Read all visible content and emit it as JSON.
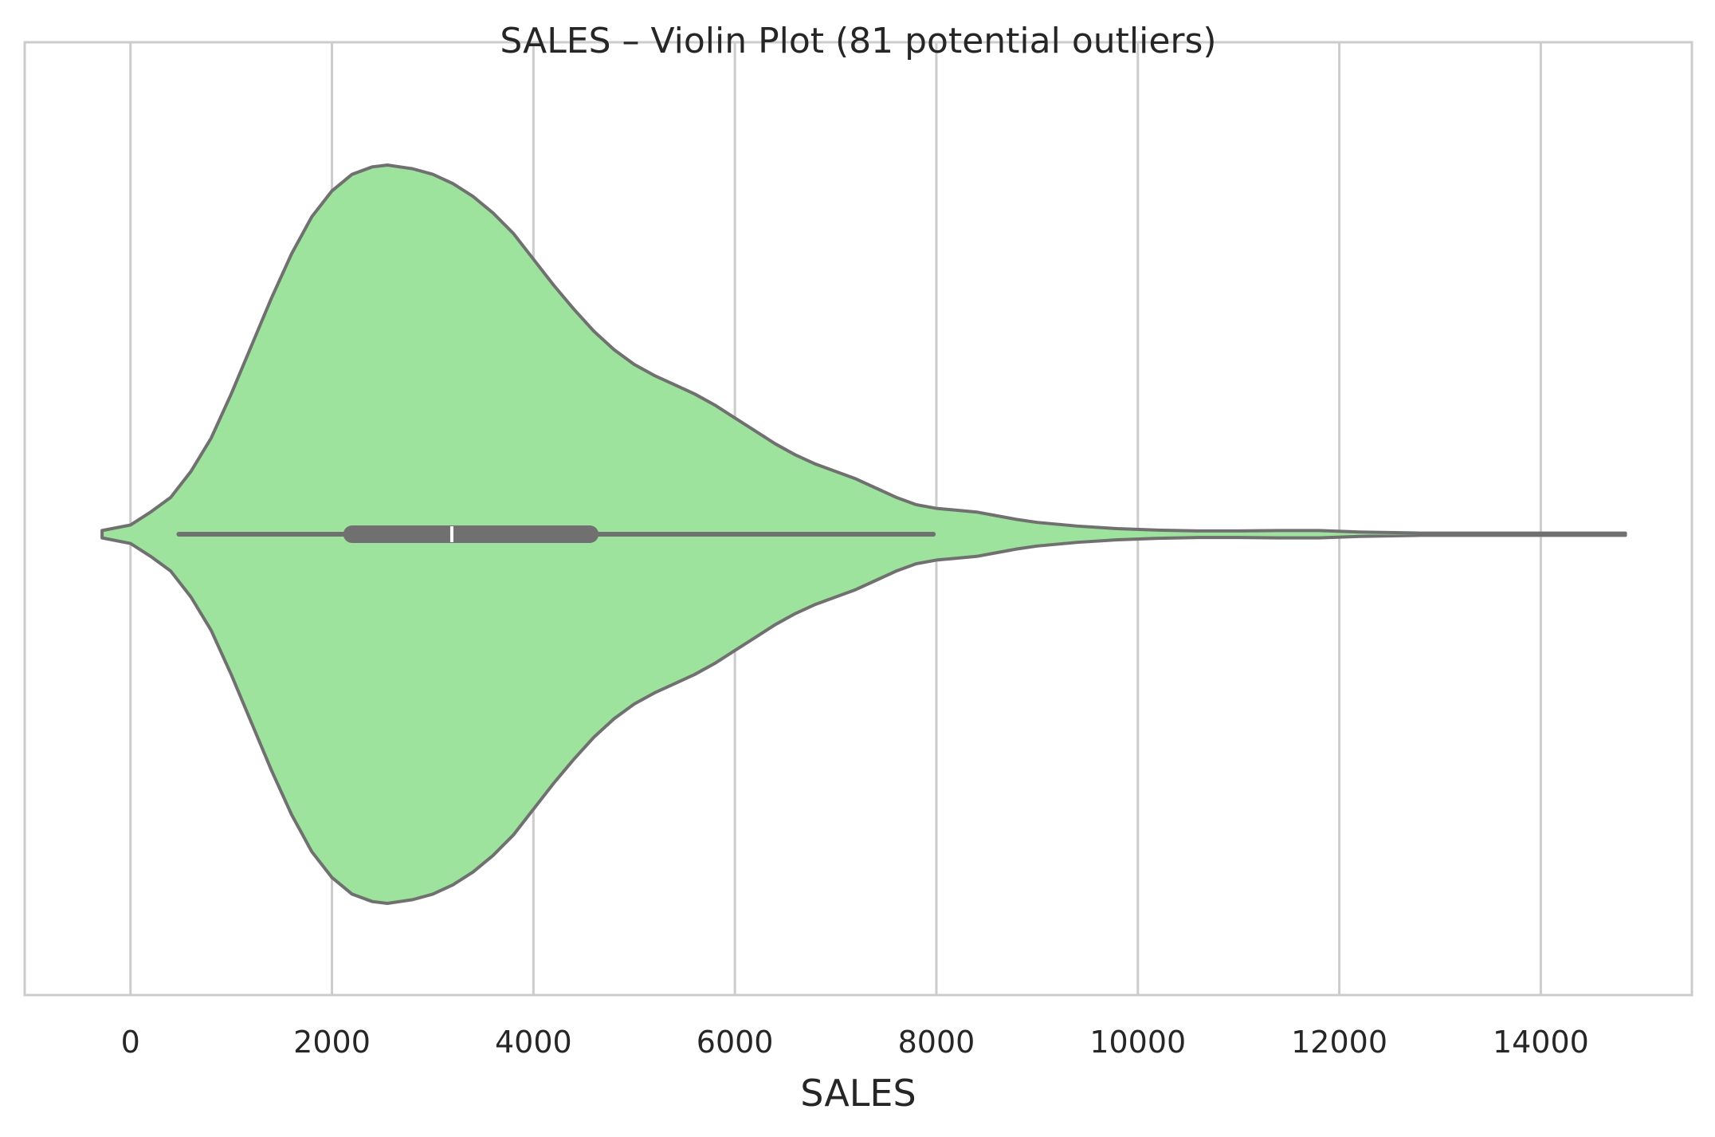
{
  "chart_data": {
    "type": "violin",
    "title": "SALES – Violin Plot (81 potential outliers)",
    "xlabel": "SALES",
    "ylabel": "",
    "xlim": [
      -1050,
      15500
    ],
    "xticks": [
      0,
      2000,
      4000,
      6000,
      8000,
      10000,
      12000,
      14000
    ],
    "xtick_labels": [
      "0",
      "2000",
      "4000",
      "6000",
      "8000",
      "10000",
      "12000",
      "14000"
    ],
    "grid": "vertical",
    "fill_color": "#9de39d",
    "edge_color": "#707070",
    "grid_color": "#cccccc",
    "density": [
      [
        -282,
        0.01
      ],
      [
        0,
        0.025
      ],
      [
        200,
        0.06
      ],
      [
        400,
        0.1
      ],
      [
        600,
        0.17
      ],
      [
        800,
        0.26
      ],
      [
        1000,
        0.38
      ],
      [
        1200,
        0.51
      ],
      [
        1400,
        0.64
      ],
      [
        1600,
        0.76
      ],
      [
        1800,
        0.86
      ],
      [
        2000,
        0.93
      ],
      [
        2200,
        0.975
      ],
      [
        2400,
        0.995
      ],
      [
        2550,
        1.0
      ],
      [
        2800,
        0.99
      ],
      [
        3000,
        0.975
      ],
      [
        3200,
        0.95
      ],
      [
        3400,
        0.915
      ],
      [
        3600,
        0.87
      ],
      [
        3800,
        0.815
      ],
      [
        4000,
        0.745
      ],
      [
        4200,
        0.675
      ],
      [
        4400,
        0.61
      ],
      [
        4600,
        0.55
      ],
      [
        4800,
        0.5
      ],
      [
        5000,
        0.46
      ],
      [
        5200,
        0.43
      ],
      [
        5400,
        0.405
      ],
      [
        5600,
        0.38
      ],
      [
        5800,
        0.35
      ],
      [
        6000,
        0.315
      ],
      [
        6200,
        0.28
      ],
      [
        6400,
        0.245
      ],
      [
        6600,
        0.215
      ],
      [
        6800,
        0.19
      ],
      [
        7000,
        0.17
      ],
      [
        7200,
        0.15
      ],
      [
        7400,
        0.125
      ],
      [
        7600,
        0.1
      ],
      [
        7800,
        0.08
      ],
      [
        8000,
        0.07
      ],
      [
        8200,
        0.065
      ],
      [
        8400,
        0.06
      ],
      [
        8600,
        0.05
      ],
      [
        8800,
        0.04
      ],
      [
        9000,
        0.032
      ],
      [
        9400,
        0.022
      ],
      [
        9800,
        0.015
      ],
      [
        10200,
        0.011
      ],
      [
        10600,
        0.009
      ],
      [
        11000,
        0.009
      ],
      [
        11400,
        0.01
      ],
      [
        11800,
        0.01
      ],
      [
        12200,
        0.006
      ],
      [
        12800,
        0.003
      ],
      [
        13500,
        0.003
      ],
      [
        14200,
        0.003
      ],
      [
        14840,
        0.003
      ]
    ],
    "box": {
      "whisker_low": 480,
      "q1": 2200,
      "median": 3190,
      "q3": 4560,
      "whisker_high": 7970
    }
  }
}
